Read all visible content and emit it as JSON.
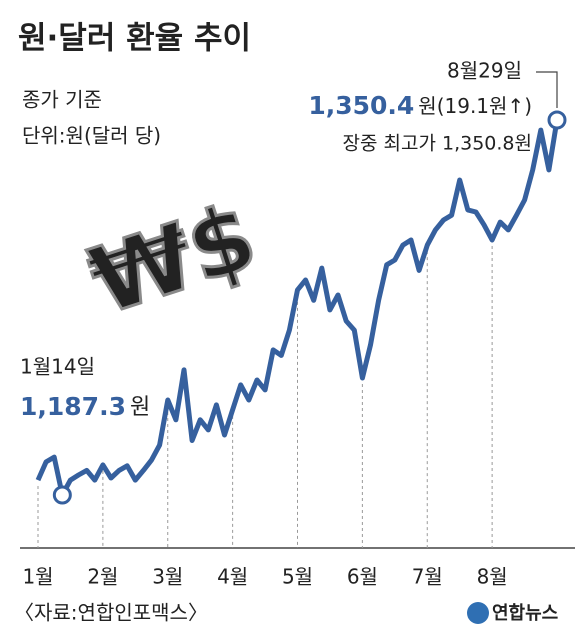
{
  "chart_data": {
    "type": "line",
    "title": "원·달러 환율 추이",
    "subtitle": "종가 기준",
    "unit_note": "단위:원(달러 당)",
    "illustration": "₩$",
    "categories": [
      "1월",
      null,
      null,
      null,
      null,
      null,
      null,
      null,
      "2월",
      null,
      null,
      null,
      null,
      null,
      null,
      null,
      "3월",
      null,
      null,
      null,
      null,
      null,
      null,
      null,
      "4월",
      null,
      null,
      null,
      null,
      null,
      null,
      null,
      "5월",
      null,
      null,
      null,
      null,
      null,
      null,
      null,
      "6월",
      null,
      null,
      null,
      null,
      null,
      null,
      null,
      "7월",
      null,
      null,
      null,
      null,
      null,
      null,
      null,
      "8월",
      null,
      null,
      null,
      null,
      null,
      null,
      null,
      null
    ],
    "values": [
      1193.8,
      1201.7,
      1203.8,
      1187.3,
      1193.8,
      1196,
      1198,
      1193.8,
      1200.4,
      1194.7,
      1198,
      1200,
      1193.8,
      1198,
      1202.5,
      1209,
      1228.6,
      1220,
      1241.7,
      1211,
      1220,
      1215.6,
      1226.5,
      1213.4,
      1224.3,
      1235.2,
      1228.6,
      1237.3,
      1233,
      1250.4,
      1248,
      1259,
      1276.5,
      1280.8,
      1272,
      1286,
      1267.8,
      1274.3,
      1263,
      1259,
      1238.2,
      1252.6,
      1272,
      1287.4,
      1289.5,
      1296,
      1298.2,
      1285,
      1296,
      1302.6,
      1306.9,
      1309,
      1324.3,
      1311.3,
      1310.4,
      1304.8,
      1298.2,
      1306,
      1302.6,
      1309,
      1315.6,
      1328.7,
      1346,
      1328.7,
      1350.4
    ],
    "value_labels": [
      null,
      null,
      null,
      "1,187.3",
      null,
      null,
      null,
      null,
      null,
      null,
      null,
      null,
      null,
      null,
      null,
      null,
      null,
      null,
      null,
      null,
      null,
      null,
      null,
      null,
      null,
      null,
      null,
      null,
      null,
      null,
      null,
      null,
      null,
      null,
      null,
      null,
      null,
      null,
      null,
      null,
      null,
      null,
      null,
      null,
      null,
      null,
      null,
      null,
      null,
      null,
      null,
      null,
      null,
      null,
      null,
      null,
      null,
      null,
      null,
      null,
      null,
      null,
      null,
      null,
      "1,350.4"
    ],
    "color": "#36609e",
    "annotations": {
      "low": {
        "date": "1월14일",
        "unit": "원"
      },
      "high": {
        "date": "8월29일",
        "unit": "원(19.1원↑)",
        "note": "장중 최고가 1,350.8원"
      }
    },
    "source": "〈자료:연합인포맥스〉",
    "logo": "연합뉴스"
  }
}
